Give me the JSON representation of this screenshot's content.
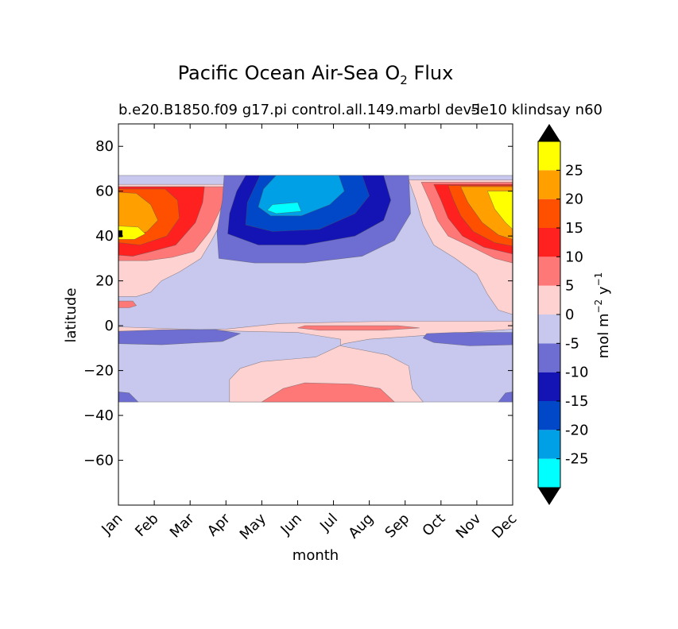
{
  "chart_data": {
    "type": "heatmap",
    "title_prefix": "Pacific Ocean Air-Sea O",
    "title_subscript": "2",
    "title_suffix": "Flux",
    "subtitle_left": "b.e20.B1850.f09 g17.pi control.all.149.marbl dev-l",
    "subtitle_right": "5e10 klindsay n60",
    "xlabel": "month",
    "ylabel": "latitude",
    "x_ticks": [
      "Jan",
      "Feb",
      "Mar",
      "Apr",
      "May",
      "Jun",
      "Jul",
      "Aug",
      "Sep",
      "Oct",
      "Nov",
      "Dec"
    ],
    "y_ticks": [
      80,
      60,
      40,
      20,
      0,
      -20,
      -40,
      -60
    ],
    "y_tick_labels": [
      "80",
      "60",
      "40",
      "20",
      "0",
      "−20",
      "−40",
      "−60"
    ],
    "ylim": [
      -80,
      90
    ],
    "xlim": [
      0,
      11
    ],
    "data_lat_range": [
      -34,
      67
    ],
    "colorbar": {
      "label_text": "mol m",
      "label_exp1": "−2",
      "label_mid": "y",
      "label_exp2": "−1",
      "levels": [
        -30,
        -25,
        -20,
        -15,
        -10,
        -5,
        0,
        5,
        10,
        15,
        20,
        25,
        30
      ],
      "tick_values": [
        25,
        20,
        15,
        10,
        5,
        0,
        -5,
        -10,
        -15,
        -20,
        -25
      ],
      "tick_labels": [
        "25",
        "20",
        "15",
        "10",
        "5",
        "0",
        "-5",
        "-10",
        "-15",
        "-20",
        "-25"
      ],
      "colors": [
        "#00ffff",
        "#00a0e6",
        "#0048c8",
        "#1414b4",
        "#6e6ed2",
        "#c8c8ee",
        "#ffd2d2",
        "#ff7878",
        "#ff2020",
        "#ff5000",
        "#ffa000",
        "#ffff00"
      ],
      "under_color": "#000000",
      "over_color": "#000000"
    },
    "colors": {
      "neg5_0": "#c8c8ee",
      "neg10_5": "#6e6ed2",
      "neg15_10": "#1414b4",
      "neg20_15": "#0048c8",
      "neg25_20": "#00a0e6",
      "neg30_25": "#00ffff",
      "p0_5": "#ffd2d2",
      "p5_10": "#ff7878",
      "p10_15": "#ff2020",
      "p15_20": "#ff5000",
      "p20_25": "#ffa000",
      "p25_30": "#ffff00"
    }
  }
}
